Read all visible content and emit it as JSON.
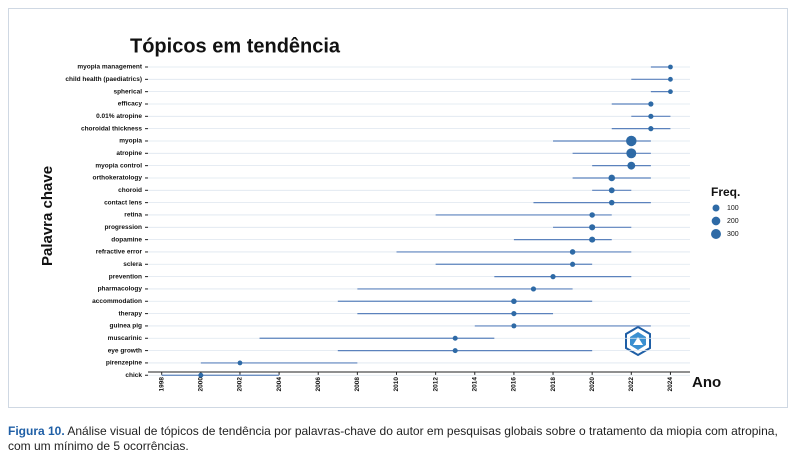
{
  "chart_data": {
    "type": "trend",
    "title": "Tópicos em tendência",
    "y_label": "Palavra chave",
    "x_label": "Ano",
    "xlim": [
      1997.3,
      2025
    ],
    "xticks": [
      1998,
      2000,
      2002,
      2004,
      2006,
      2008,
      2010,
      2012,
      2014,
      2016,
      2018,
      2020,
      2022,
      2024
    ],
    "color": "#2e6aa6",
    "line_color": "#5b82bd",
    "grid": true,
    "legend_title": "Freq.",
    "size_legend": [
      100,
      200,
      300
    ],
    "items": [
      {
        "keyword": "myopia management",
        "start": 2023,
        "median": 2024,
        "end": 2024,
        "freq": 20
      },
      {
        "keyword": "child health (paediatrics)",
        "start": 2022,
        "median": 2024,
        "end": 2024,
        "freq": 20
      },
      {
        "keyword": "spherical",
        "start": 2023,
        "median": 2024,
        "end": 2024,
        "freq": 20
      },
      {
        "keyword": "efficacy",
        "start": 2021,
        "median": 2023,
        "end": 2023,
        "freq": 30
      },
      {
        "keyword": "0.01% atropine",
        "start": 2022,
        "median": 2023,
        "end": 2024,
        "freq": 30
      },
      {
        "keyword": "choroidal thickness",
        "start": 2021,
        "median": 2023,
        "end": 2024,
        "freq": 30
      },
      {
        "keyword": "myopia",
        "start": 2018,
        "median": 2022,
        "end": 2023,
        "freq": 350
      },
      {
        "keyword": "atropine",
        "start": 2019,
        "median": 2022,
        "end": 2023,
        "freq": 300
      },
      {
        "keyword": "myopia control",
        "start": 2020,
        "median": 2022,
        "end": 2023,
        "freq": 150
      },
      {
        "keyword": "orthokeratology",
        "start": 2019,
        "median": 2021,
        "end": 2023,
        "freq": 80
      },
      {
        "keyword": "choroid",
        "start": 2020,
        "median": 2021,
        "end": 2022,
        "freq": 50
      },
      {
        "keyword": "contact lens",
        "start": 2017,
        "median": 2021,
        "end": 2023,
        "freq": 40
      },
      {
        "keyword": "retina",
        "start": 2012,
        "median": 2020,
        "end": 2021,
        "freq": 40
      },
      {
        "keyword": "progression",
        "start": 2018,
        "median": 2020,
        "end": 2022,
        "freq": 60
      },
      {
        "keyword": "dopamine",
        "start": 2016,
        "median": 2020,
        "end": 2021,
        "freq": 60
      },
      {
        "keyword": "refractive error",
        "start": 2010,
        "median": 2019,
        "end": 2022,
        "freq": 40
      },
      {
        "keyword": "sclera",
        "start": 2012,
        "median": 2019,
        "end": 2020,
        "freq": 30
      },
      {
        "keyword": "prevention",
        "start": 2015,
        "median": 2018,
        "end": 2022,
        "freq": 30
      },
      {
        "keyword": "pharmacology",
        "start": 2008,
        "median": 2017,
        "end": 2019,
        "freq": 30
      },
      {
        "keyword": "accommodation",
        "start": 2007,
        "median": 2016,
        "end": 2020,
        "freq": 40
      },
      {
        "keyword": "therapy",
        "start": 2008,
        "median": 2016,
        "end": 2018,
        "freq": 30
      },
      {
        "keyword": "guinea pig",
        "start": 2014,
        "median": 2016,
        "end": 2023,
        "freq": 25
      },
      {
        "keyword": "muscarinic",
        "start": 2003,
        "median": 2013,
        "end": 2015,
        "freq": 25
      },
      {
        "keyword": "eye growth",
        "start": 2007,
        "median": 2013,
        "end": 2020,
        "freq": 25
      },
      {
        "keyword": "pirenzepine",
        "start": 2000,
        "median": 2002,
        "end": 2008,
        "freq": 20
      },
      {
        "keyword": "chick",
        "start": 1998,
        "median": 2000,
        "end": 2004,
        "freq": 25
      }
    ]
  },
  "caption": {
    "label": "Figura 10.",
    "text": "Análise visual de tópicos de tendência por palavras-chave do autor em pesquisas globais sobre o tratamento da miopia com atropina, com um mínimo de 5 ocorrências."
  }
}
